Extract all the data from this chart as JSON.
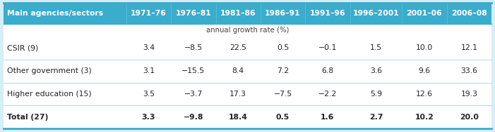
{
  "header_bg": "#3AACCC",
  "header_text_color": "#FFFFFF",
  "body_bg": "#FFFFFF",
  "outer_bg": "#D6EEF5",
  "separator_color": "#B0D8E8",
  "border_color": "#3AACCC",
  "col_header": "Main agencies/sectors",
  "col_periods": [
    "1971–76",
    "1976–81",
    "1981–86",
    "1986–91",
    "1991–96",
    "1996–2001",
    "2001–06",
    "2006–08"
  ],
  "subheader": "annual growth rate (%)",
  "rows": [
    {
      "label": "CSIR (9)",
      "values": [
        "3.4",
        "−8.5",
        "22.5",
        "0.5",
        "−0.1",
        "1.5",
        "10.0",
        "12.1"
      ],
      "bold": false
    },
    {
      "label": "Other government (3)",
      "values": [
        "3.1",
        "−15.5",
        "8.4",
        "7.2",
        "6.8",
        "3.6",
        "9.6",
        "33.6"
      ],
      "bold": false
    },
    {
      "label": "Higher education (15)",
      "values": [
        "3.5",
        "−3.7",
        "17.3",
        "−7.5",
        "−2.2",
        "5.9",
        "12.6",
        "19.3"
      ],
      "bold": false
    },
    {
      "label": "Total (27)",
      "values": [
        "3.3",
        "−9.8",
        "18.4",
        "0.5",
        "1.6",
        "2.7",
        "10.2",
        "20.0"
      ],
      "bold": true
    }
  ],
  "header_fontsize": 7.8,
  "body_fontsize": 7.8,
  "figsize": [
    7.01,
    1.88
  ],
  "dpi": 100
}
